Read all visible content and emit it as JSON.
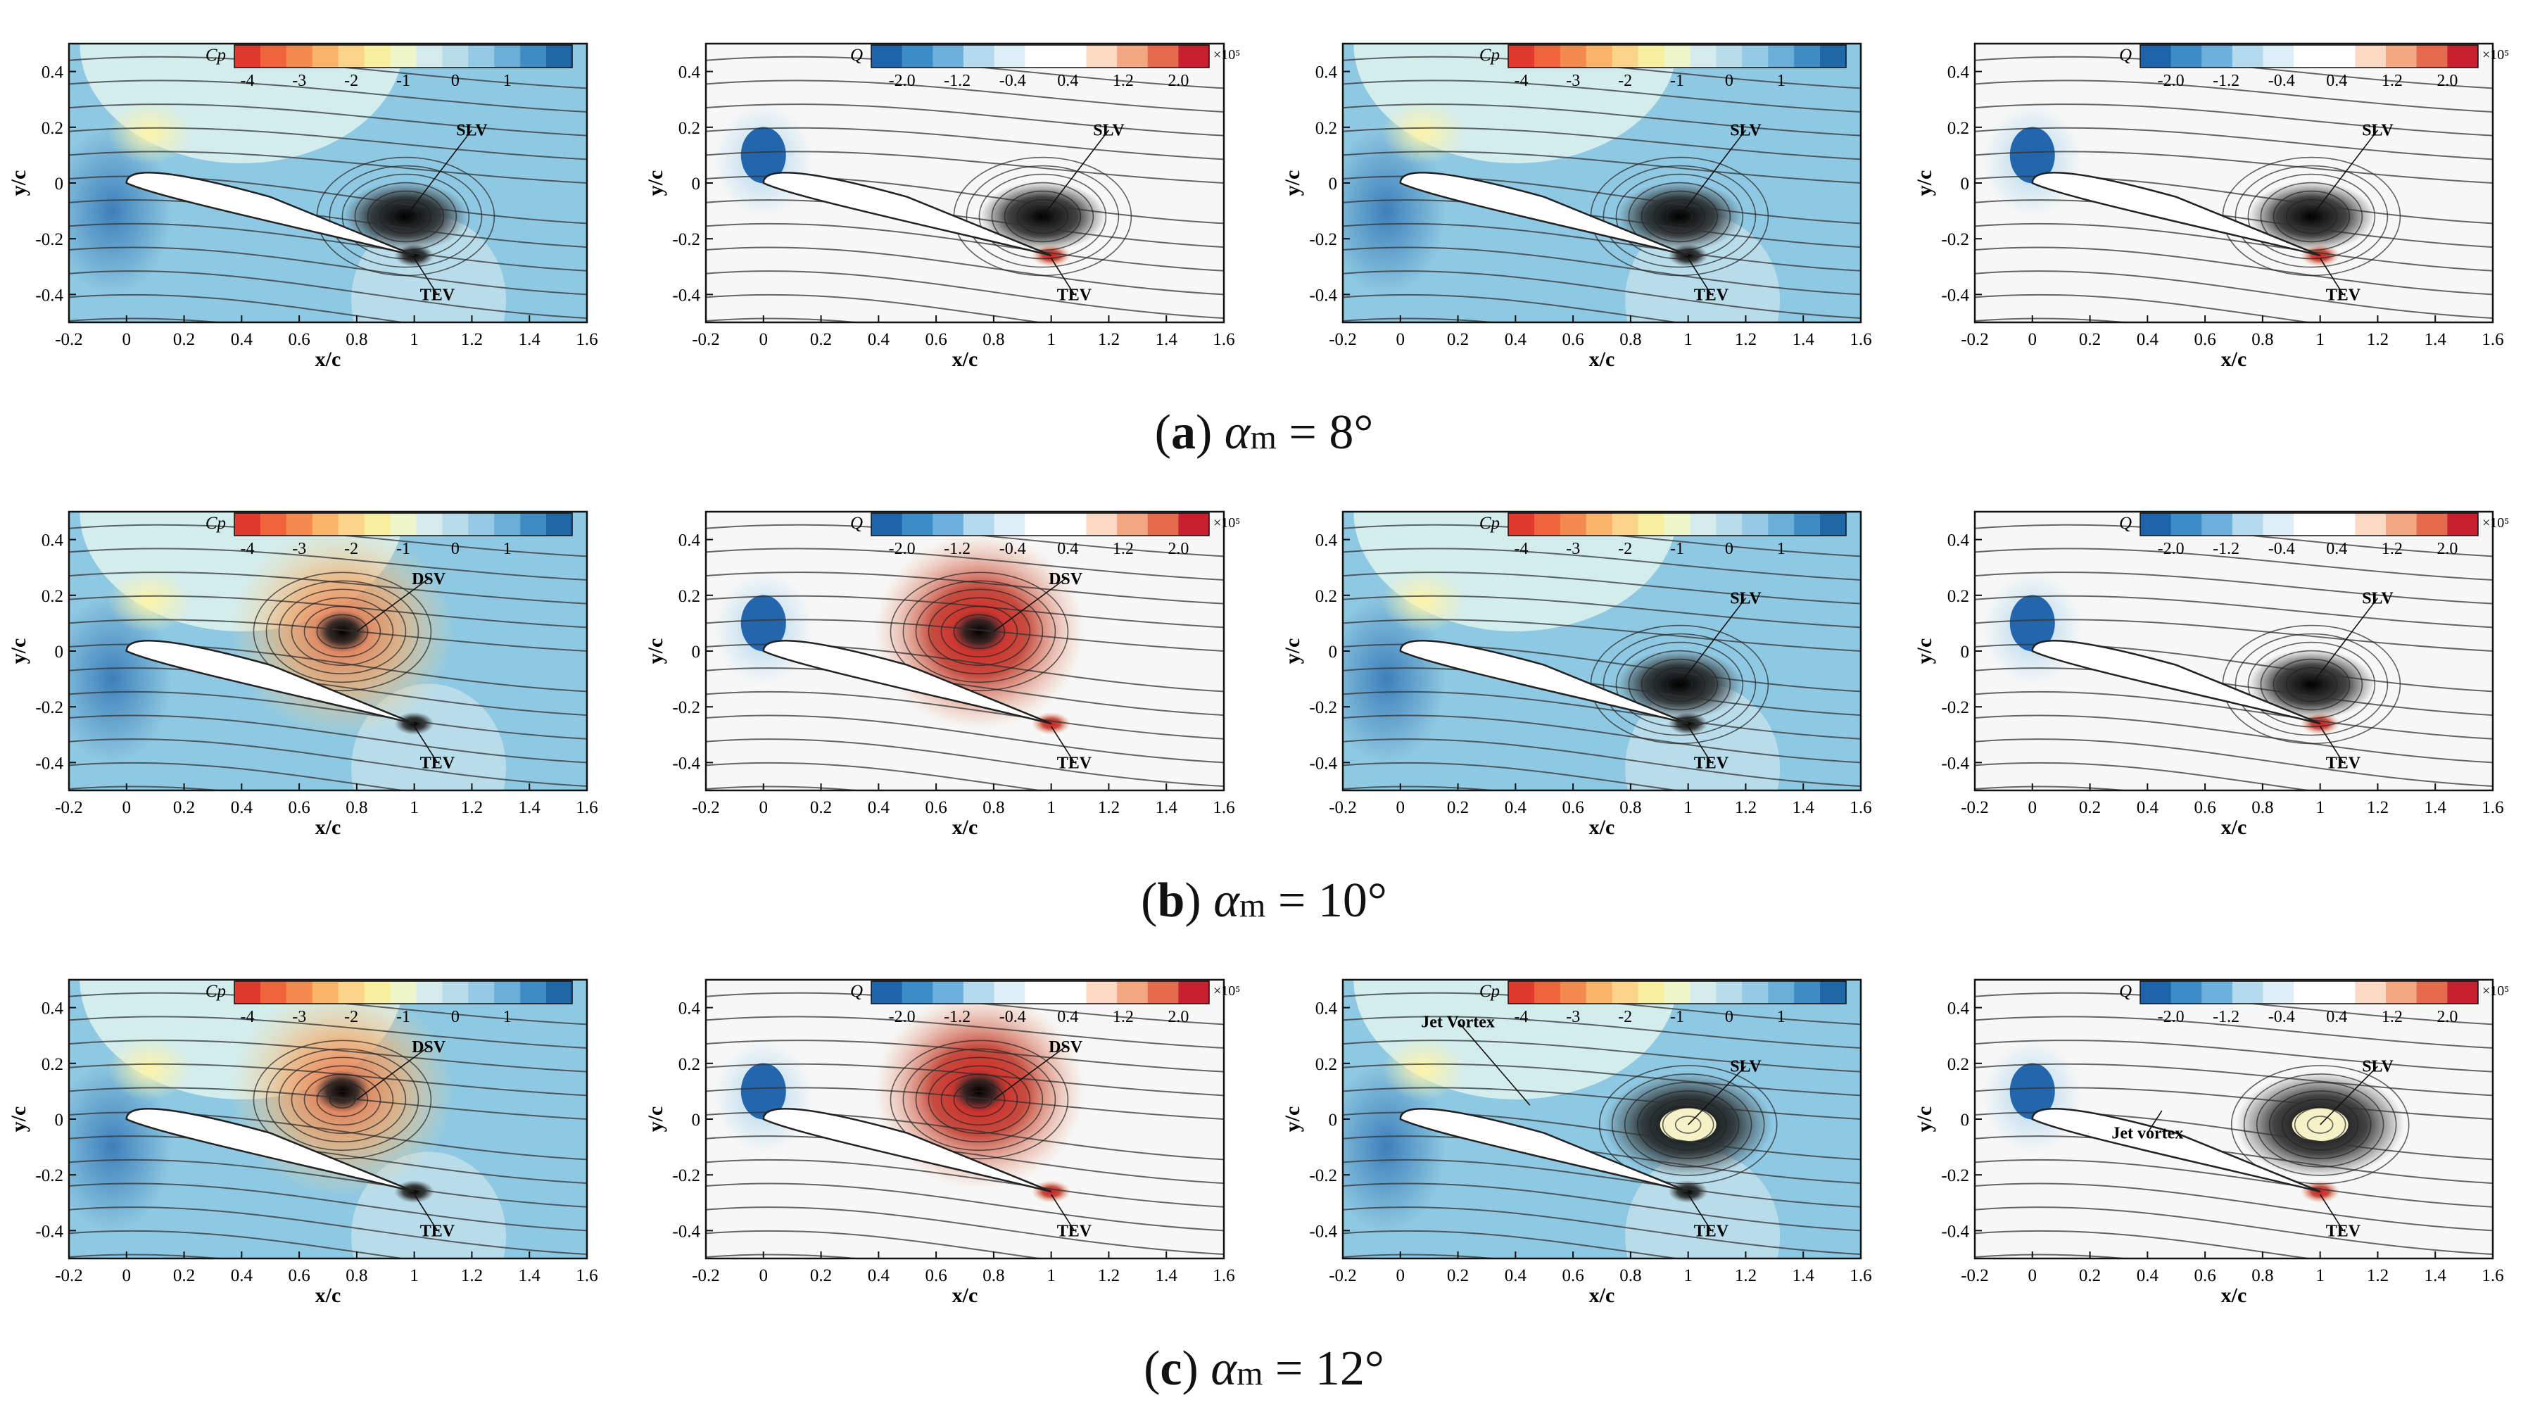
{
  "figure": {
    "rows": [
      {
        "tag": "a",
        "alpha_m": "8°",
        "panels": [
          {
            "field": "Cp",
            "labels": [
              "SLV",
              "TEV"
            ]
          },
          {
            "field": "Q",
            "labels": [
              "SLV",
              "TEV"
            ]
          },
          {
            "field": "Cp",
            "labels": [
              "SLV",
              "TEV"
            ]
          },
          {
            "field": "Q",
            "labels": [
              "SLV",
              "TEV"
            ]
          }
        ]
      },
      {
        "tag": "b",
        "alpha_m": "10°",
        "panels": [
          {
            "field": "Cp",
            "labels": [
              "DSV",
              "TEV"
            ]
          },
          {
            "field": "Q",
            "labels": [
              "DSV",
              "TEV"
            ]
          },
          {
            "field": "Cp",
            "labels": [
              "SLV",
              "TEV"
            ]
          },
          {
            "field": "Q",
            "labels": [
              "SLV",
              "TEV"
            ]
          }
        ]
      },
      {
        "tag": "c",
        "alpha_m": "12°",
        "panels": [
          {
            "field": "Cp",
            "labels": [
              "DSV",
              "TEV"
            ]
          },
          {
            "field": "Q",
            "labels": [
              "DSV",
              "TEV"
            ]
          },
          {
            "field": "Cp",
            "labels": [
              "Jet Vortex",
              "SLV",
              "TEV"
            ]
          },
          {
            "field": "Q",
            "labels": [
              "SLV",
              "Jet vortex",
              "TEV"
            ]
          }
        ]
      }
    ],
    "axes": {
      "xlabel": "x/c",
      "ylabel": "y/c",
      "x_ticks": [
        "-0.2",
        "0",
        "0.2",
        "0.4",
        "0.6",
        "0.8",
        "1",
        "1.2",
        "1.4",
        "1.6"
      ],
      "y_ticks": [
        "0.4",
        "0.2",
        "0",
        "-0.2",
        "-0.4"
      ],
      "xlim": [
        -0.2,
        1.6
      ],
      "ylim": [
        -0.5,
        0.5
      ]
    },
    "colorbars": {
      "Cp": {
        "label": "Cp",
        "ticks": [
          "-4",
          "-3",
          "-2",
          "-1",
          "0",
          "1"
        ]
      },
      "Q": {
        "label": "Q",
        "ticks": [
          "-2.0",
          "-1.2",
          "-0.4",
          "0.4",
          "1.2",
          "2.0"
        ],
        "scale": "×10⁵"
      }
    },
    "captions": {
      "alpha_symbol": "α",
      "alpha_sub": "m",
      "eq": " = "
    }
  }
}
